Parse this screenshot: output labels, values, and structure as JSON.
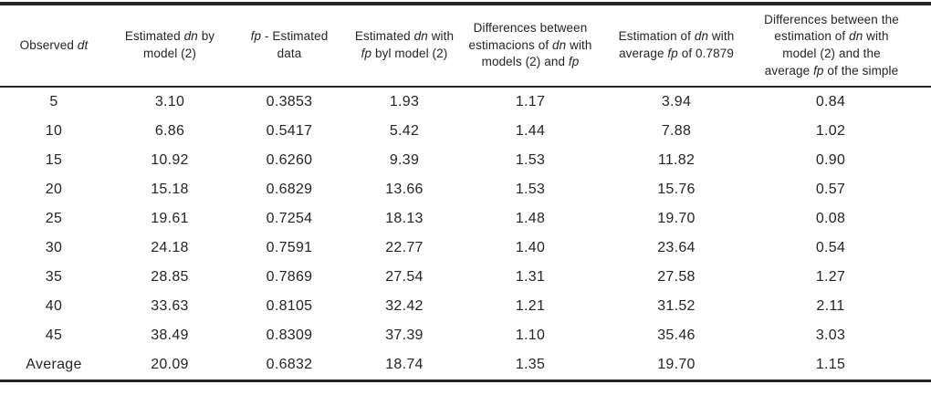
{
  "page": {
    "background_color": "#ffffff",
    "text_color": "#262424",
    "rule_color": "#262424"
  },
  "table": {
    "columns": [
      {
        "id": "observed-dt",
        "header_text": "Observed dt",
        "header_segments": [
          {
            "text": "Observed ",
            "italic": false
          },
          {
            "text": "dt",
            "italic": true
          }
        ]
      },
      {
        "id": "estimated-dn-by-model-2",
        "header_text": "Estimated dn by model (2)",
        "header_segments": [
          {
            "text": "Estimated ",
            "italic": false
          },
          {
            "text": "dn",
            "italic": true
          },
          {
            "text": " by model (2)",
            "italic": false
          }
        ]
      },
      {
        "id": "fp-estimated-data",
        "header_text": "fp - Estimated data",
        "header_segments": [
          {
            "text": "fp",
            "italic": true
          },
          {
            "text": " - Estimated data",
            "italic": false
          }
        ]
      },
      {
        "id": "estimated-dn-with-fp-byl-model-2",
        "header_text": "Estimated dn with fp byl model (2)",
        "header_segments": [
          {
            "text": "Estimated ",
            "italic": false
          },
          {
            "text": "dn",
            "italic": true
          },
          {
            "text": " with ",
            "italic": false
          },
          {
            "text": "fp",
            "italic": true
          },
          {
            "text": " byl model (2)",
            "italic": false
          }
        ]
      },
      {
        "id": "differences-between-estimacions",
        "header_text": "Differences between estimacions of dn with models (2) and fp",
        "header_segments": [
          {
            "text": "Differences between estimacions of ",
            "italic": false
          },
          {
            "text": "dn",
            "italic": true
          },
          {
            "text": " with models (2) and ",
            "italic": false
          },
          {
            "text": "fp",
            "italic": true
          }
        ]
      },
      {
        "id": "estimation-dn-average-fp",
        "header_text": "Estimation of dn with average fp of 0.7879",
        "header_segments": [
          {
            "text": "Estimation of ",
            "italic": false
          },
          {
            "text": "dn",
            "italic": true
          },
          {
            "text": " with average ",
            "italic": false
          },
          {
            "text": "fp",
            "italic": true
          },
          {
            "text": " of 0.7879",
            "italic": false
          }
        ]
      },
      {
        "id": "differences-average-fp-simple",
        "header_text": "Differences between the estimation of dn with model (2) and the average fp of the simple",
        "header_segments": [
          {
            "text": "Differences between the estimation of ",
            "italic": false
          },
          {
            "text": "dn",
            "italic": true
          },
          {
            "text": " with model (2) and the average ",
            "italic": false
          },
          {
            "text": "fp",
            "italic": true
          },
          {
            "text": " of the simple",
            "italic": false
          }
        ]
      }
    ],
    "rows": [
      [
        "5",
        "3.10",
        "0.3853",
        "1.93",
        "1.17",
        "3.94",
        "0.84"
      ],
      [
        "10",
        "6.86",
        "0.5417",
        "5.42",
        "1.44",
        "7.88",
        "1.02"
      ],
      [
        "15",
        "10.92",
        "0.6260",
        "9.39",
        "1.53",
        "11.82",
        "0.90"
      ],
      [
        "20",
        "15.18",
        "0.6829",
        "13.66",
        "1.53",
        "15.76",
        "0.57"
      ],
      [
        "25",
        "19.61",
        "0.7254",
        "18.13",
        "1.48",
        "19.70",
        "0.08"
      ],
      [
        "30",
        "24.18",
        "0.7591",
        "22.77",
        "1.40",
        "23.64",
        "0.54"
      ],
      [
        "35",
        "28.85",
        "0.7869",
        "27.54",
        "1.31",
        "27.58",
        "1.27"
      ],
      [
        "40",
        "33.63",
        "0.8105",
        "32.42",
        "1.21",
        "31.52",
        "2.11"
      ],
      [
        "45",
        "38.49",
        "0.8309",
        "37.39",
        "1.10",
        "35.46",
        "3.03"
      ],
      [
        "Average",
        "20.09",
        "0.6832",
        "18.74",
        "1.35",
        "19.70",
        "1.15"
      ]
    ]
  },
  "chart_data": {
    "type": "table",
    "columns": [
      "Observed dt",
      "Estimated dn by model (2)",
      "fp - Estimated data",
      "Estimated dn with fp byl model (2)",
      "Differences between estimacions of dn with models (2) and fp",
      "Estimation of dn with average fp of 0.7879",
      "Differences between the estimation of dn with model (2) and the average fp of the simple"
    ],
    "rows": [
      [
        5,
        3.1,
        0.3853,
        1.93,
        1.17,
        3.94,
        0.84
      ],
      [
        10,
        6.86,
        0.5417,
        5.42,
        1.44,
        7.88,
        1.02
      ],
      [
        15,
        10.92,
        0.626,
        9.39,
        1.53,
        11.82,
        0.9
      ],
      [
        20,
        15.18,
        0.6829,
        13.66,
        1.53,
        15.76,
        0.57
      ],
      [
        25,
        19.61,
        0.7254,
        18.13,
        1.48,
        19.7,
        0.08
      ],
      [
        30,
        24.18,
        0.7591,
        22.77,
        1.4,
        23.64,
        0.54
      ],
      [
        35,
        28.85,
        0.7869,
        27.54,
        1.31,
        27.58,
        1.27
      ],
      [
        40,
        33.63,
        0.8105,
        32.42,
        1.21,
        31.52,
        2.11
      ],
      [
        45,
        38.49,
        0.8309,
        37.39,
        1.1,
        35.46,
        3.03
      ],
      [
        "Average",
        20.09,
        0.6832,
        18.74,
        1.35,
        19.7,
        1.15
      ]
    ]
  }
}
